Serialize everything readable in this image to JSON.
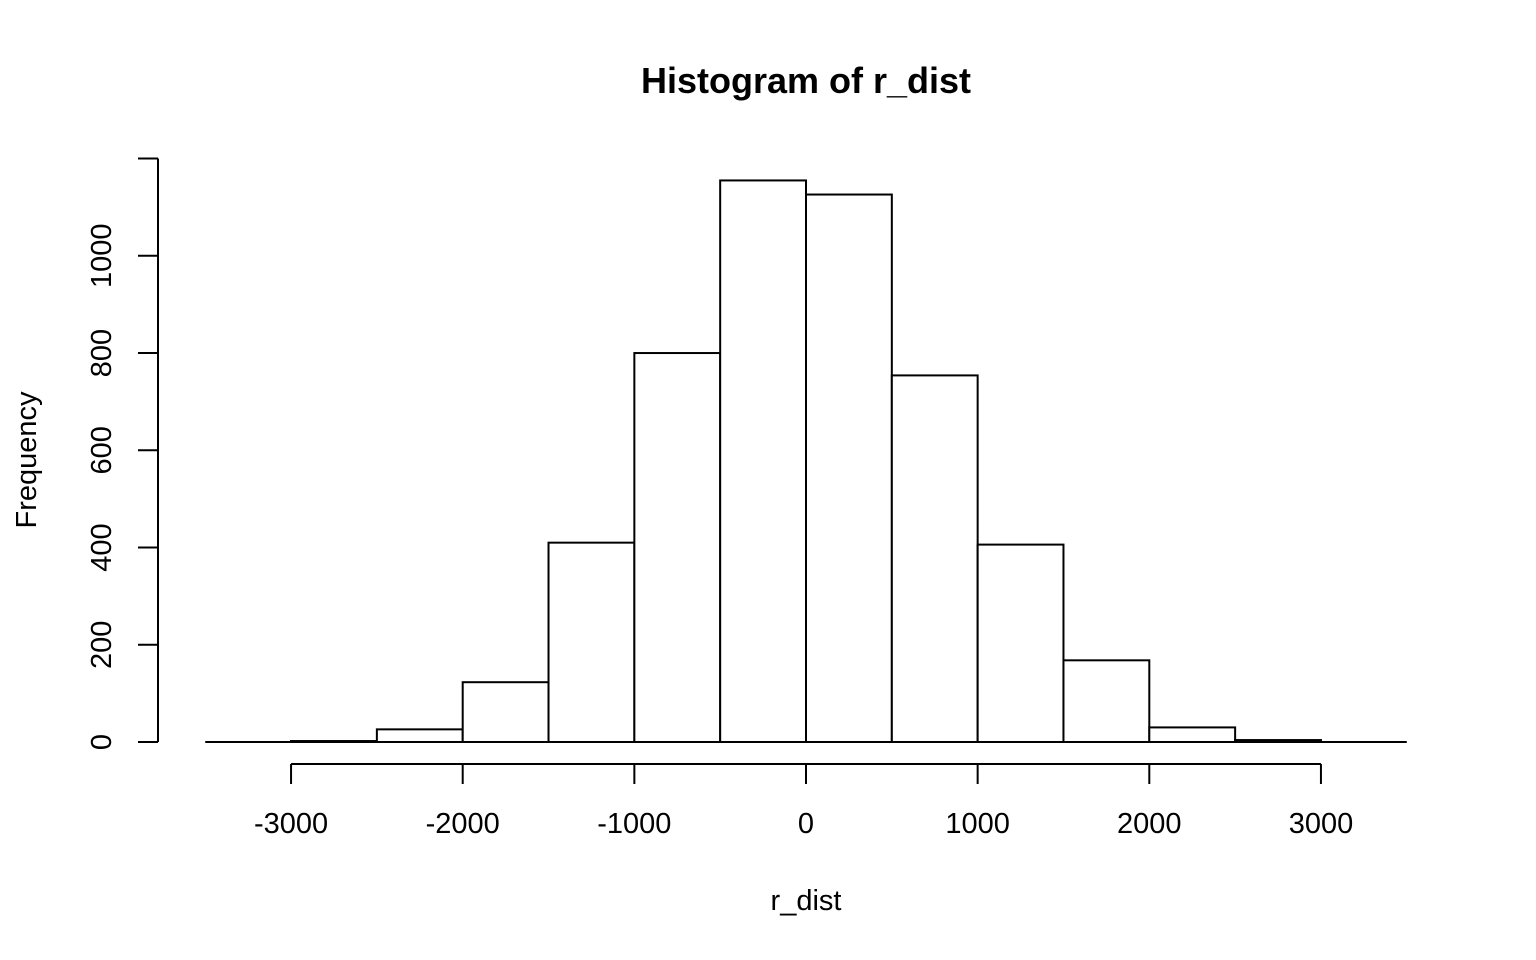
{
  "chart_data": {
    "type": "bar",
    "title": "Histogram of r_dist",
    "xlabel": "r_dist",
    "ylabel": "Frequency",
    "bins": [
      {
        "from": -3500,
        "to": -3000,
        "count": 0
      },
      {
        "from": -3000,
        "to": -2500,
        "count": 2
      },
      {
        "from": -2500,
        "to": -2000,
        "count": 26
      },
      {
        "from": -2000,
        "to": -1500,
        "count": 123
      },
      {
        "from": -1500,
        "to": -1000,
        "count": 410
      },
      {
        "from": -1000,
        "to": -500,
        "count": 800
      },
      {
        "from": -500,
        "to": 0,
        "count": 1155
      },
      {
        "from": 0,
        "to": 500,
        "count": 1126
      },
      {
        "from": 500,
        "to": 1000,
        "count": 754
      },
      {
        "from": 1000,
        "to": 1500,
        "count": 406
      },
      {
        "from": 1500,
        "to": 2000,
        "count": 168
      },
      {
        "from": 2000,
        "to": 2500,
        "count": 30
      },
      {
        "from": 2500,
        "to": 3000,
        "count": 4
      },
      {
        "from": 3000,
        "to": 3500,
        "count": 0
      }
    ],
    "x_ticks": [
      -3000,
      -2000,
      -1000,
      0,
      1000,
      2000,
      3000
    ],
    "x_tick_labels": [
      "-3000",
      "-2000",
      "-1000",
      "0",
      "1000",
      "2000",
      "3000"
    ],
    "y_ticks": [
      0,
      200,
      400,
      600,
      800,
      1000
    ],
    "y_tick_labels": [
      "0",
      "200",
      "400",
      "600",
      "800",
      "1000"
    ],
    "xlim": [
      -3500,
      3500
    ],
    "ylim": [
      0,
      1200
    ],
    "grid": false,
    "bar_fill": "#ffffff",
    "bar_stroke": "#000000"
  }
}
